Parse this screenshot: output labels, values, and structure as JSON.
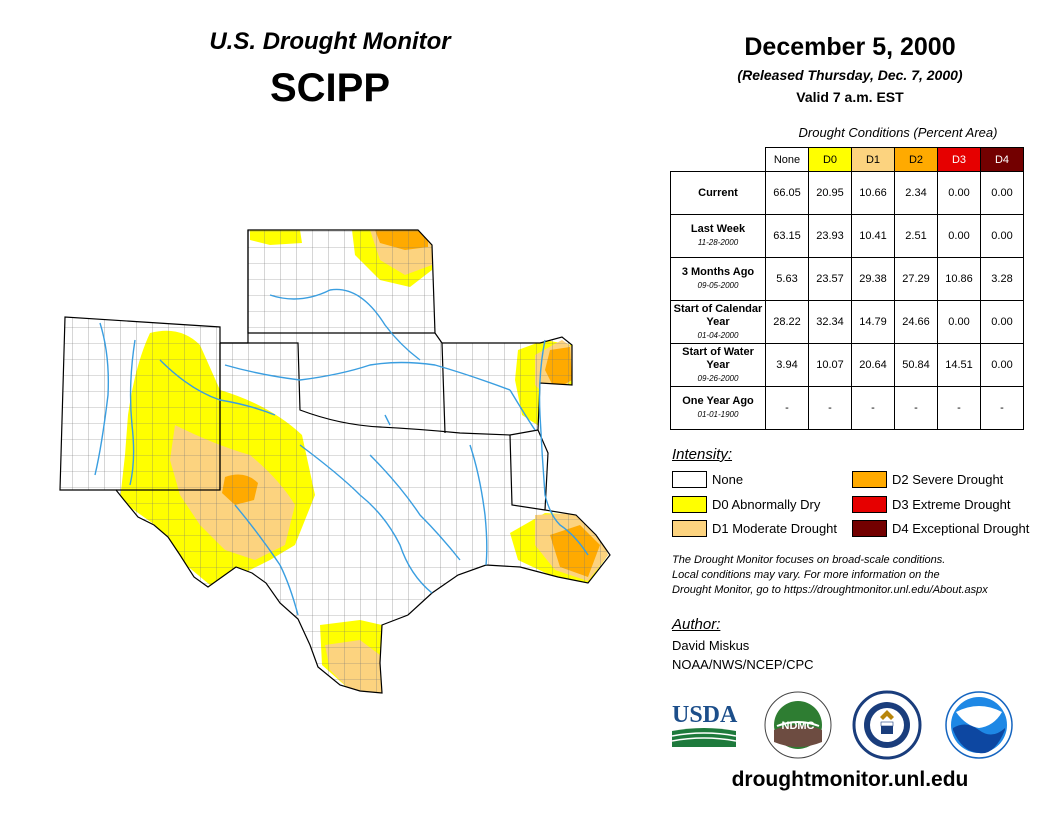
{
  "header": {
    "title": "U.S. Drought Monitor",
    "region": "SCIPP",
    "date": "December 5, 2000",
    "released": "(Released Thursday, Dec. 7, 2000)",
    "valid": "Valid 7 a.m. EST"
  },
  "table": {
    "caption": "Drought Conditions (Percent Area)",
    "columns": [
      {
        "label": "None",
        "color": "#ffffff",
        "text": "#000000"
      },
      {
        "label": "D0",
        "color": "#ffff00",
        "text": "#000000"
      },
      {
        "label": "D1",
        "color": "#fcd37f",
        "text": "#000000"
      },
      {
        "label": "D2",
        "color": "#ffaa00",
        "text": "#000000"
      },
      {
        "label": "D3",
        "color": "#e60000",
        "text": "#ffffff"
      },
      {
        "label": "D4",
        "color": "#730000",
        "text": "#ffffff"
      }
    ],
    "rows": [
      {
        "label": "Current",
        "date": "",
        "values": [
          "66.05",
          "20.95",
          "10.66",
          "2.34",
          "0.00",
          "0.00"
        ]
      },
      {
        "label": "Last Week",
        "date": "11-28-2000",
        "values": [
          "63.15",
          "23.93",
          "10.41",
          "2.51",
          "0.00",
          "0.00"
        ]
      },
      {
        "label": "3 Months Ago",
        "date": "09-05-2000",
        "values": [
          "5.63",
          "23.57",
          "29.38",
          "27.29",
          "10.86",
          "3.28"
        ]
      },
      {
        "label": "Start of Calendar Year",
        "date": "01-04-2000",
        "values": [
          "28.22",
          "32.34",
          "14.79",
          "24.66",
          "0.00",
          "0.00"
        ]
      },
      {
        "label": "Start of Water Year",
        "date": "09-26-2000",
        "values": [
          "3.94",
          "10.07",
          "20.64",
          "50.84",
          "14.51",
          "0.00"
        ]
      },
      {
        "label": "One Year Ago",
        "date": "01-01-1900",
        "values": [
          "-",
          "-",
          "-",
          "-",
          "-",
          "-"
        ]
      }
    ]
  },
  "legend": {
    "title": "Intensity:",
    "items": [
      {
        "label": "None",
        "color": "#ffffff"
      },
      {
        "label": "D0 Abnormally Dry",
        "color": "#ffff00"
      },
      {
        "label": "D1 Moderate Drought",
        "color": "#fcd37f"
      },
      {
        "label": "D2 Severe Drought",
        "color": "#ffaa00"
      },
      {
        "label": "D3 Extreme Drought",
        "color": "#e60000"
      },
      {
        "label": "D4 Exceptional Drought",
        "color": "#730000"
      }
    ]
  },
  "note": {
    "line1": "The Drought Monitor focuses on broad-scale conditions.",
    "line2": "Local conditions may vary. For more information on the",
    "line3": "Drought Monitor, go to https://droughtmonitor.unl.edu/About.aspx"
  },
  "author": {
    "heading": "Author:",
    "name": "David Miskus",
    "org": "NOAA/NWS/NCEP/CPC"
  },
  "logos": {
    "usda": "USDA",
    "ndmc": "NDMC"
  },
  "footer": {
    "url": "droughtmonitor.unl.edu"
  },
  "map_colors": {
    "none": "#ffffff",
    "d0": "#ffff00",
    "d1": "#fcd37f",
    "d2": "#ffaa00",
    "river": "#3a9ee0",
    "border": "#000000",
    "county": "#666666"
  }
}
